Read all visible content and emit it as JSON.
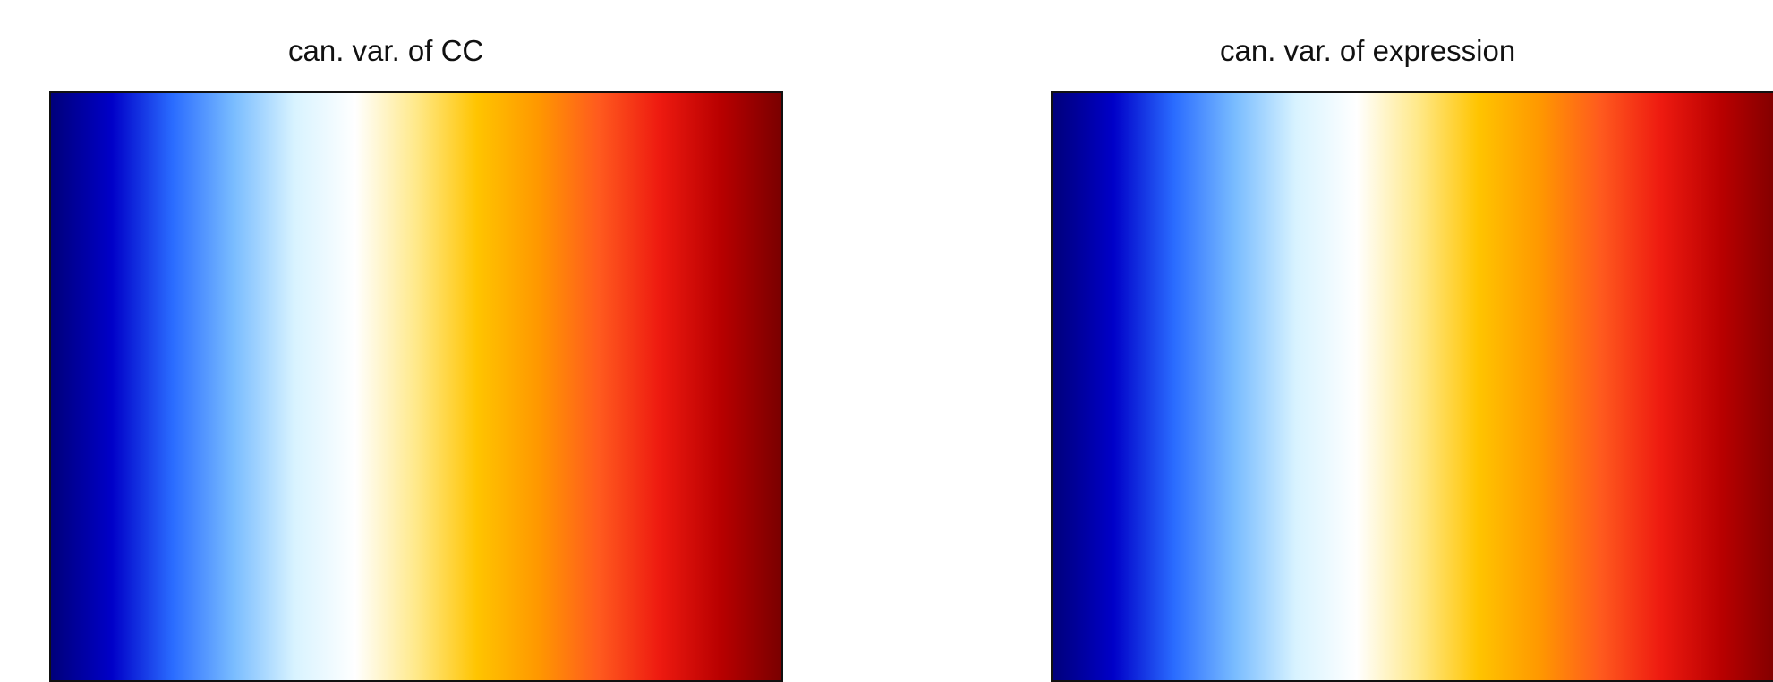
{
  "panels": [
    {
      "title": "can. var. of CC"
    },
    {
      "title": "can. var. of expression"
    }
  ],
  "colorbar": {
    "stops": [
      "#00007a",
      "#0000c8",
      "#2a6cff",
      "#79bcff",
      "#d8f3ff",
      "#ffffff",
      "#ffe98a",
      "#ffc400",
      "#ff9800",
      "#ff5a1e",
      "#ee1a10",
      "#b80000",
      "#7a0000"
    ]
  },
  "colors": {
    "navy": "#0b0b6e",
    "blue": "#2d62e0",
    "light_blue": "#86c2f2",
    "pale_cyan": "#c4ecf7",
    "yellow": "#f6cd1e",
    "orange": "#f5931e",
    "red_orange": "#ef4b23",
    "red": "#d8151a",
    "dark_red": "#8a0a0a",
    "map_lines": "#c9c9c9"
  }
}
